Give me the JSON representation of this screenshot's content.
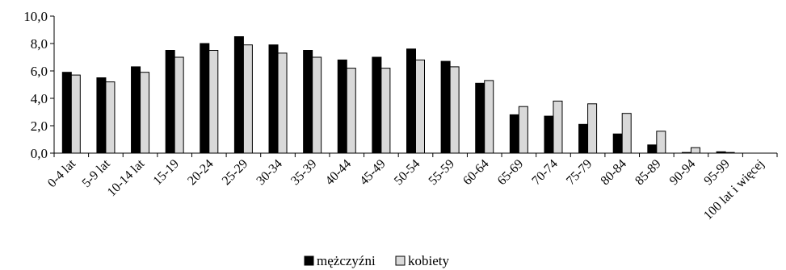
{
  "chart_data": {
    "type": "bar",
    "categories": [
      "0-4 lat",
      "5-9 lat",
      "10-14 lat",
      "15-19",
      "20-24",
      "25-29",
      "30-34",
      "35-39",
      "40-44",
      "45-49",
      "50-54",
      "55-59",
      "60-64",
      "65-69",
      "70-74",
      "75-79",
      "80-84",
      "85-89",
      "90-94",
      "95-99",
      "100 lat i więcej"
    ],
    "series": [
      {
        "name": "mężczyźni",
        "color": "#000000",
        "values": [
          5.9,
          5.5,
          6.3,
          7.5,
          8.0,
          8.5,
          7.9,
          7.5,
          6.8,
          7.0,
          7.6,
          6.7,
          5.1,
          2.8,
          2.7,
          2.1,
          1.4,
          0.6,
          0.05,
          0.1,
          0.0
        ]
      },
      {
        "name": "kobiety",
        "color": "#d9d9d9",
        "values": [
          5.7,
          5.2,
          5.9,
          7.0,
          7.5,
          7.9,
          7.3,
          7.0,
          6.2,
          6.2,
          6.8,
          6.3,
          5.3,
          3.4,
          3.8,
          3.6,
          2.9,
          1.6,
          0.4,
          0.05,
          0.0
        ]
      }
    ],
    "yticks": [
      "0,0",
      "2,0",
      "4,0",
      "6,0",
      "8,0",
      "10,0"
    ],
    "ylim": [
      0,
      10
    ],
    "grid": false,
    "legend_position": "bottom-center"
  }
}
